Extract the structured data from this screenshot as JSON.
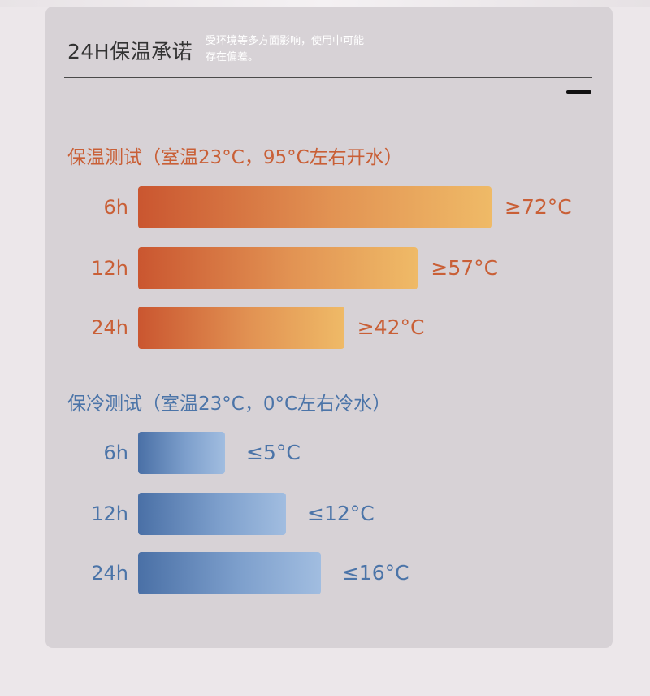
{
  "header": {
    "title": "24H保温承诺",
    "note_line1": "受环境等多方面影响，使用中可能",
    "note_line2": "存在偏差。"
  },
  "colors": {
    "warm": "#c95f36",
    "cold": "#4b74a8",
    "card_background": "#d7d2d6"
  },
  "chart_data": [
    {
      "type": "bar",
      "orientation": "horizontal",
      "title": "保温测试（室温23°C，95°C左右开水）",
      "categories": [
        "6h",
        "12h",
        "24h"
      ],
      "values": [
        72,
        57,
        42
      ],
      "value_labels": [
        "≥72°C",
        "≥57°C",
        "≥42°C"
      ],
      "unit": "°C",
      "grid": false
    },
    {
      "type": "bar",
      "orientation": "horizontal",
      "title": "保冷测试（室温23°C，0°C左右冷水）",
      "categories": [
        "6h",
        "12h",
        "24h"
      ],
      "values": [
        5,
        12,
        16
      ],
      "value_labels": [
        "≤5°C",
        "≤12°C",
        "≤16°C"
      ],
      "unit": "°C",
      "grid": false
    }
  ]
}
